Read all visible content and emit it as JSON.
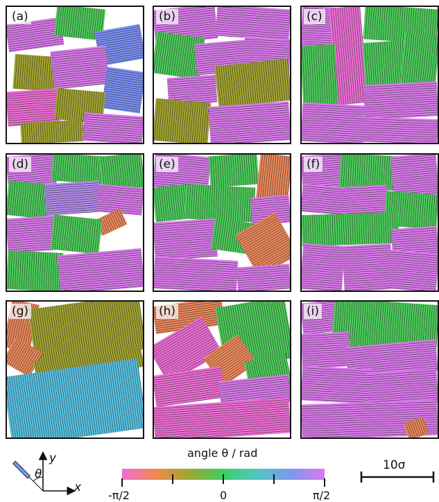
{
  "panels": [
    {
      "label": "(a)"
    },
    {
      "label": "(b)"
    },
    {
      "label": "(c)"
    },
    {
      "label": "(d)"
    },
    {
      "label": "(e)"
    },
    {
      "label": "(f)"
    },
    {
      "label": "(g)"
    },
    {
      "label": "(h)"
    },
    {
      "label": "(i)"
    }
  ],
  "axes_inset": {
    "y_label": "y",
    "x_label": "x",
    "angle_label": "θ"
  },
  "colorbar": {
    "title": "angle θ / rad",
    "tick_labels": [
      "-π/2",
      "0",
      "π/2"
    ],
    "range": [
      "-π/2",
      "π/2"
    ],
    "colors": [
      "#f06bd8",
      "#ee8a50",
      "#9aa832",
      "#3dce63",
      "#4fc7c6",
      "#7a98ee",
      "#d87aee"
    ]
  },
  "scale_bar": {
    "label": "10σ"
  },
  "palette": {
    "magenta": "#d77ae8",
    "pink": "#ea6ed2",
    "violet": "#b08ae8",
    "green": "#4dc95b",
    "olive": "#a0a232",
    "orange": "#e8875a",
    "blue": "#7a8ff0",
    "cyan": "#58c0e0"
  }
}
